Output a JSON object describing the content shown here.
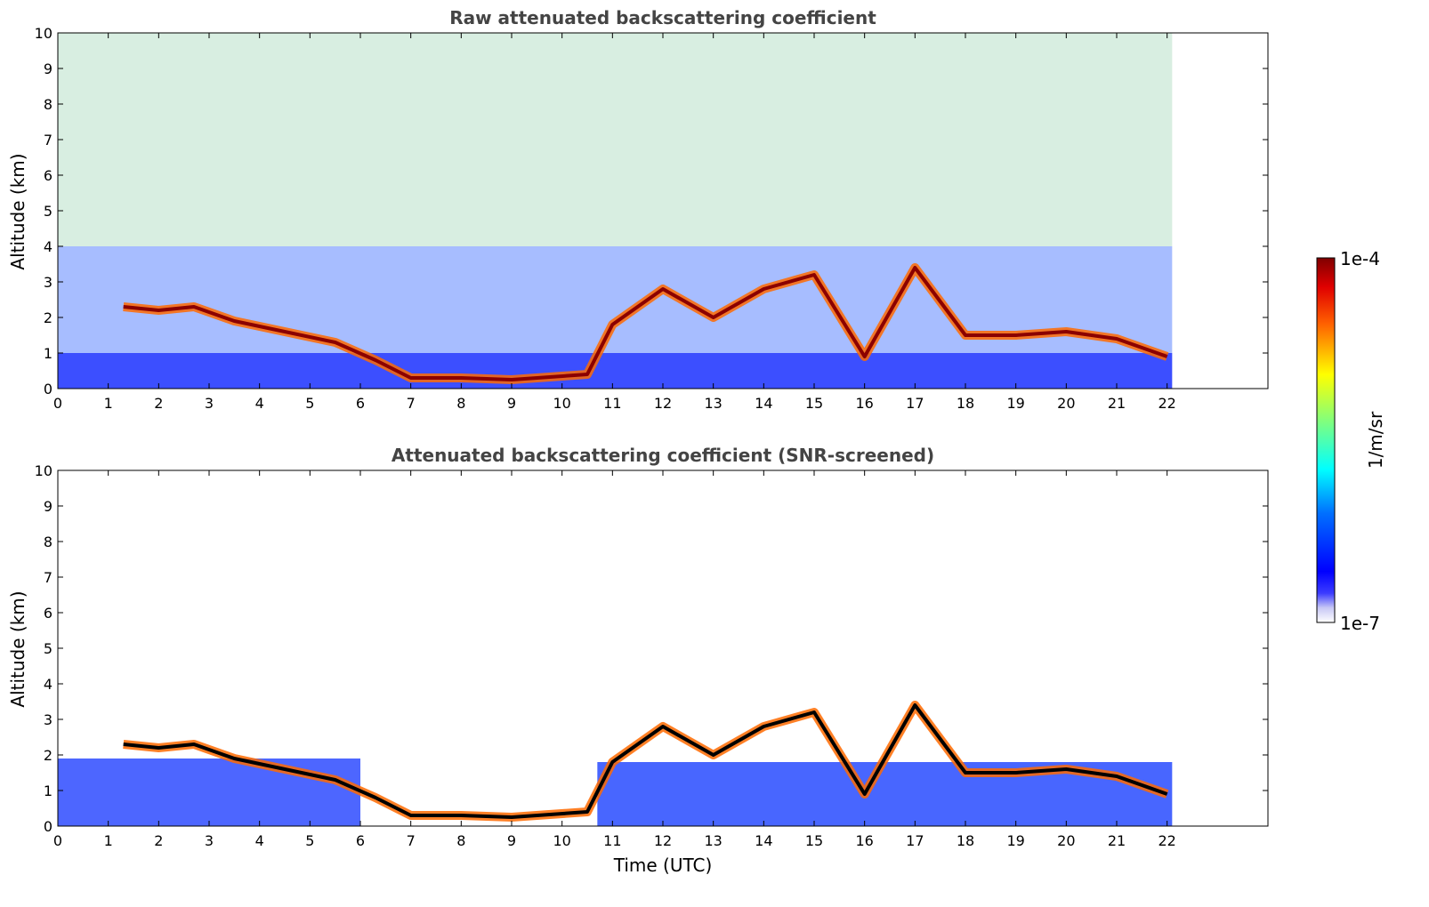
{
  "figure": {
    "colorbar": {
      "max_label": "1e-4",
      "min_label": "1e-7",
      "unit_label": "1/m/sr"
    }
  },
  "chart_data": [
    {
      "type": "heatmap",
      "title": "Raw attenuated backscattering coefficient",
      "xlabel": "",
      "ylabel": "Altitude (km)",
      "xlim": [
        0,
        24
      ],
      "ylim": [
        0,
        10
      ],
      "x_ticks": [
        "0",
        "1",
        "2",
        "3",
        "4",
        "5",
        "6",
        "7",
        "8",
        "9",
        "10",
        "11",
        "12",
        "13",
        "14",
        "15",
        "16",
        "17",
        "18",
        "19",
        "20",
        "21",
        "22"
      ],
      "y_ticks": [
        "0",
        "1",
        "2",
        "3",
        "4",
        "5",
        "6",
        "7",
        "8",
        "9",
        "10"
      ],
      "data_end_hour": 22.1,
      "colorscale": "jet",
      "value_range": [
        "1e-7",
        "1e-4"
      ],
      "cloud_layer_top_km": [
        {
          "t": 1.3,
          "z": 2.3
        },
        {
          "t": 2.0,
          "z": 2.2
        },
        {
          "t": 2.7,
          "z": 2.3
        },
        {
          "t": 3.5,
          "z": 1.9
        },
        {
          "t": 4.5,
          "z": 1.6
        },
        {
          "t": 5.5,
          "z": 1.3
        },
        {
          "t": 6.3,
          "z": 0.8
        },
        {
          "t": 7.0,
          "z": 0.3
        },
        {
          "t": 8.0,
          "z": 0.3
        },
        {
          "t": 9.0,
          "z": 0.25
        },
        {
          "t": 10.5,
          "z": 0.4
        },
        {
          "t": 11.0,
          "z": 1.8
        },
        {
          "t": 12.0,
          "z": 2.8
        },
        {
          "t": 13.0,
          "z": 2.0
        },
        {
          "t": 14.0,
          "z": 2.8
        },
        {
          "t": 15.0,
          "z": 3.2
        },
        {
          "t": 16.0,
          "z": 0.9
        },
        {
          "t": 17.0,
          "z": 3.4
        },
        {
          "t": 18.0,
          "z": 1.5
        },
        {
          "t": 19.0,
          "z": 1.5
        },
        {
          "t": 20.0,
          "z": 1.6
        },
        {
          "t": 21.0,
          "z": 1.4
        },
        {
          "t": 22.0,
          "z": 0.9
        }
      ]
    },
    {
      "type": "heatmap",
      "title": "Attenuated backscattering coefficient (SNR-screened)",
      "xlabel": "Time (UTC)",
      "ylabel": "Altitude (km)",
      "xlim": [
        0,
        24
      ],
      "ylim": [
        0,
        10
      ],
      "x_ticks": [
        "0",
        "1",
        "2",
        "3",
        "4",
        "5",
        "6",
        "7",
        "8",
        "9",
        "10",
        "11",
        "12",
        "13",
        "14",
        "15",
        "16",
        "17",
        "18",
        "19",
        "20",
        "21",
        "22"
      ],
      "y_ticks": [
        "0",
        "1",
        "2",
        "3",
        "4",
        "5",
        "6",
        "7",
        "8",
        "9",
        "10"
      ],
      "data_end_hour": 22.1,
      "colorscale": "jet",
      "value_range": [
        "1e-7",
        "1e-4"
      ],
      "cloud_layer_top_km": [
        {
          "t": 1.3,
          "z": 2.3
        },
        {
          "t": 2.0,
          "z": 2.2
        },
        {
          "t": 2.7,
          "z": 2.3
        },
        {
          "t": 3.5,
          "z": 1.9
        },
        {
          "t": 4.5,
          "z": 1.6
        },
        {
          "t": 5.5,
          "z": 1.3
        },
        {
          "t": 6.3,
          "z": 0.8
        },
        {
          "t": 7.0,
          "z": 0.3
        },
        {
          "t": 8.0,
          "z": 0.3
        },
        {
          "t": 9.0,
          "z": 0.25
        },
        {
          "t": 10.5,
          "z": 0.4
        },
        {
          "t": 11.0,
          "z": 1.8
        },
        {
          "t": 12.0,
          "z": 2.8
        },
        {
          "t": 13.0,
          "z": 2.0
        },
        {
          "t": 14.0,
          "z": 2.8
        },
        {
          "t": 15.0,
          "z": 3.2
        },
        {
          "t": 16.0,
          "z": 0.9
        },
        {
          "t": 17.0,
          "z": 3.4
        },
        {
          "t": 18.0,
          "z": 1.5
        },
        {
          "t": 19.0,
          "z": 1.5
        },
        {
          "t": 20.0,
          "z": 1.6
        },
        {
          "t": 21.0,
          "z": 1.4
        },
        {
          "t": 22.0,
          "z": 0.9
        }
      ]
    }
  ]
}
